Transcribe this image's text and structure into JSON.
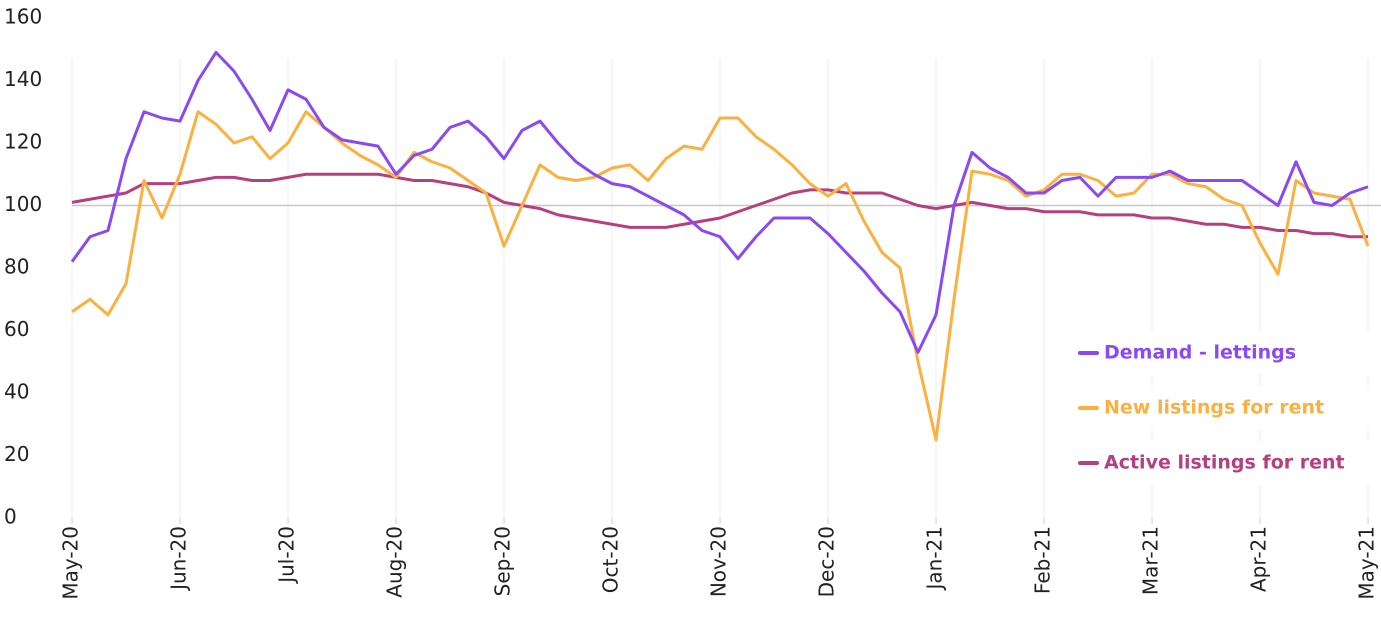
{
  "chart_data": {
    "type": "line",
    "categories": [
      "May-20",
      null,
      null,
      null,
      null,
      null,
      "Jun-20",
      null,
      null,
      null,
      null,
      null,
      "Jul-20",
      null,
      null,
      null,
      null,
      null,
      "Aug-20",
      null,
      null,
      null,
      null,
      null,
      "Sep-20",
      null,
      null,
      null,
      null,
      null,
      "Oct-20",
      null,
      null,
      null,
      null,
      null,
      "Nov-20",
      null,
      null,
      null,
      null,
      null,
      "Dec-20",
      null,
      null,
      null,
      null,
      null,
      "Jan-21",
      null,
      null,
      null,
      null,
      null,
      "Feb-21",
      null,
      null,
      null,
      null,
      null,
      "Mar-21",
      null,
      null,
      null,
      null,
      null,
      "Apr-21",
      null,
      null,
      null,
      null,
      null,
      "May-21"
    ],
    "series": [
      {
        "name": "Demand - lettings",
        "color": "#8a4af3",
        "values": [
          82,
          90,
          92,
          115,
          130,
          128,
          127,
          140,
          149,
          143,
          134,
          124,
          137,
          134,
          125,
          121,
          120,
          119,
          110,
          116,
          118,
          125,
          127,
          122,
          115,
          124,
          127,
          120,
          114,
          110,
          107,
          106,
          103,
          100,
          97,
          92,
          90,
          83,
          90,
          96,
          96,
          96,
          91,
          85,
          79,
          72,
          66,
          53,
          65,
          100,
          117,
          112,
          109,
          104,
          104,
          108,
          109,
          103,
          109,
          109,
          109,
          111,
          108,
          108,
          108,
          108,
          104,
          100,
          114,
          101,
          100,
          104,
          106
        ]
      },
      {
        "name": "New listings for rent",
        "color": "#fbb040",
        "values": [
          66,
          70,
          65,
          75,
          108,
          96,
          110,
          130,
          126,
          120,
          122,
          115,
          120,
          130,
          125,
          120,
          116,
          113,
          109,
          117,
          114,
          112,
          108,
          104,
          87,
          100,
          113,
          109,
          108,
          109,
          112,
          113,
          108,
          115,
          119,
          118,
          128,
          128,
          122,
          118,
          113,
          107,
          103,
          107,
          95,
          85,
          80,
          50,
          25,
          70,
          111,
          110,
          108,
          103,
          105,
          110,
          110,
          108,
          103,
          104,
          110,
          110,
          107,
          106,
          102,
          100,
          88,
          78,
          108,
          104,
          103,
          102,
          87
        ]
      },
      {
        "name": "Active listings for rent",
        "color": "#b5407f",
        "values": [
          101,
          102,
          103,
          104,
          107,
          107,
          107,
          108,
          109,
          109,
          108,
          108,
          109,
          110,
          110,
          110,
          110,
          110,
          109,
          108,
          108,
          107,
          106,
          104,
          101,
          100,
          99,
          97,
          96,
          95,
          94,
          93,
          93,
          93,
          94,
          95,
          96,
          98,
          100,
          102,
          104,
          105,
          105,
          104,
          104,
          104,
          102,
          100,
          99,
          100,
          101,
          100,
          99,
          99,
          98,
          98,
          98,
          97,
          97,
          97,
          96,
          96,
          95,
          94,
          94,
          93,
          93,
          92,
          92,
          91,
          91,
          90,
          90
        ]
      }
    ],
    "ylim": [
      0,
      160
    ],
    "yticks": [
      0,
      20,
      40,
      60,
      80,
      100,
      120,
      140,
      160
    ],
    "reference_line": 100,
    "grid": true,
    "legend": "right"
  }
}
